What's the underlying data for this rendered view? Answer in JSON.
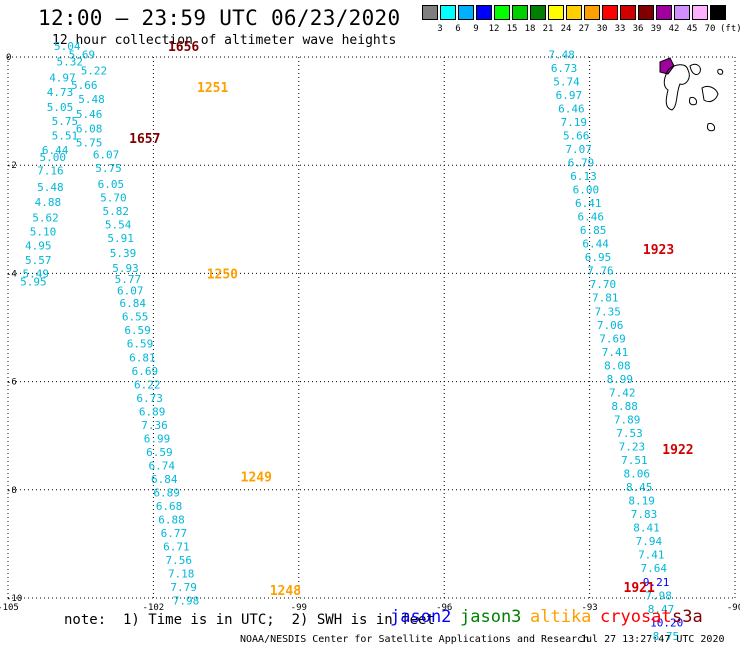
{
  "header": {
    "title": "12:00 – 23:59 UTC 06/23/2020",
    "subtitle": "12 hour collection of altimeter wave heights"
  },
  "colorbar": {
    "colors": [
      "#7f7f7f",
      "#00ffff",
      "#00b0ff",
      "#0000ff",
      "#00ff00",
      "#00d000",
      "#008000",
      "#ffff00",
      "#ffd000",
      "#ffa000",
      "#ff0000",
      "#d00000",
      "#800000",
      "#a000a0",
      "#d090ff",
      "#ffb0ff",
      "#000000"
    ],
    "labels": [
      "3",
      "6",
      "9",
      "12",
      "15",
      "18",
      "21",
      "24",
      "27",
      "30",
      "33",
      "36",
      "39",
      "42",
      "45",
      "70"
    ],
    "unit": "(ft)"
  },
  "axes": {
    "x_ticks": [
      "-105",
      "-102",
      "-99",
      "-96",
      "-93",
      "-90"
    ],
    "y_ticks": [
      "0",
      "-2",
      "-4",
      "-6",
      "-8",
      "-10"
    ],
    "lon_range": [
      -105,
      -90
    ],
    "lat_range": [
      -10,
      0
    ],
    "grid": "dotted"
  },
  "passes": [
    {
      "time": "1656",
      "color": "#800000",
      "lon": -101.7,
      "lat": 0.2
    },
    {
      "time": "1251",
      "color": "#ffa000",
      "lon": -101.1,
      "lat": -0.55
    },
    {
      "time": "1657",
      "color": "#800000",
      "lon": -102.5,
      "lat": -1.5
    },
    {
      "time": "1250",
      "color": "#ffa000",
      "lon": -100.9,
      "lat": -4.0
    },
    {
      "time": "1249",
      "color": "#ffa000",
      "lon": -100.2,
      "lat": -7.75
    },
    {
      "time": "1248",
      "color": "#ffa000",
      "lon": -99.6,
      "lat": -9.85
    },
    {
      "time": "1923",
      "color": "#d00000",
      "lon": -91.9,
      "lat": -3.55
    },
    {
      "time": "1922",
      "color": "#d00000",
      "lon": -91.5,
      "lat": -7.25
    },
    {
      "time": "1921",
      "color": "#d00000",
      "lon": -92.3,
      "lat": -9.8
    }
  ],
  "tracks": [
    {
      "name": "altika_west",
      "color": "#00b8d8",
      "points": [
        [
          -104.05,
          0.2,
          "5.04"
        ],
        [
          -103.75,
          0.05,
          "5.69"
        ],
        [
          -104.0,
          -0.08,
          "5.32"
        ],
        [
          -103.5,
          -0.25,
          "5.22"
        ],
        [
          -104.15,
          -0.38,
          "4.97"
        ],
        [
          -103.7,
          -0.52,
          "5.66"
        ],
        [
          -104.2,
          -0.65,
          "4.73"
        ],
        [
          -103.55,
          -0.78,
          "5.48"
        ],
        [
          -104.2,
          -0.92,
          "5.05"
        ],
        [
          -103.6,
          -1.05,
          "5.46"
        ],
        [
          -104.1,
          -1.18,
          "5.75"
        ],
        [
          -103.6,
          -1.32,
          "6.08"
        ],
        [
          -104.1,
          -1.45,
          "5.51"
        ],
        [
          -103.6,
          -1.58,
          "5.75"
        ],
        [
          -104.3,
          -1.72,
          "6.44"
        ],
        [
          -103.25,
          -1.8,
          "6.07"
        ],
        [
          -104.35,
          -1.85,
          "5.00"
        ],
        [
          -103.2,
          -2.05,
          "5.75"
        ],
        [
          -104.4,
          -2.1,
          "7.16"
        ],
        [
          -103.15,
          -2.35,
          "6.05"
        ],
        [
          -104.4,
          -2.4,
          "5.48"
        ],
        [
          -103.1,
          -2.6,
          "5.70"
        ],
        [
          -104.45,
          -2.68,
          "4.88"
        ],
        [
          -103.05,
          -2.85,
          "5.82"
        ],
        [
          -104.5,
          -2.97,
          "5.62"
        ],
        [
          -103.0,
          -3.1,
          "5.54"
        ],
        [
          -104.55,
          -3.23,
          "5.10"
        ],
        [
          -102.95,
          -3.35,
          "5.91"
        ],
        [
          -104.65,
          -3.48,
          "4.95"
        ],
        [
          -102.9,
          -3.62,
          "5.39"
        ],
        [
          -104.65,
          -3.75,
          "5.57"
        ],
        [
          -102.85,
          -3.9,
          "5.93"
        ],
        [
          -104.7,
          -4.0,
          "5.49"
        ],
        [
          -102.8,
          -4.1,
          "5.77"
        ],
        [
          -104.75,
          -4.15,
          "5.95"
        ],
        [
          -102.75,
          -4.32,
          "6.07"
        ],
        [
          -102.7,
          -4.55,
          "6.84"
        ],
        [
          -102.65,
          -4.8,
          "6.55"
        ],
        [
          -102.6,
          -5.05,
          "6.59"
        ],
        [
          -102.55,
          -5.3,
          "6.59"
        ],
        [
          -102.5,
          -5.55,
          "6.81"
        ],
        [
          -102.45,
          -5.8,
          "6.69"
        ],
        [
          -102.4,
          -6.05,
          "6.22"
        ],
        [
          -102.35,
          -6.3,
          "6.73"
        ],
        [
          -102.3,
          -6.55,
          "6.89"
        ],
        [
          -102.25,
          -6.8,
          "7.36"
        ],
        [
          -102.2,
          -7.05,
          "6.99"
        ],
        [
          -102.15,
          -7.3,
          "6.59"
        ],
        [
          -102.1,
          -7.55,
          "6.74"
        ],
        [
          -102.05,
          -7.8,
          "6.84"
        ],
        [
          -102.0,
          -8.05,
          "6.89"
        ],
        [
          -101.95,
          -8.3,
          "6.68"
        ],
        [
          -101.9,
          -8.55,
          "6.88"
        ],
        [
          -101.85,
          -8.8,
          "6.77"
        ],
        [
          -101.8,
          -9.05,
          "6.71"
        ],
        [
          -101.75,
          -9.3,
          "7.56"
        ],
        [
          -101.7,
          -9.55,
          "7.18"
        ],
        [
          -101.65,
          -9.8,
          "7.79"
        ],
        [
          -101.6,
          -10.05,
          "7.98"
        ]
      ]
    },
    {
      "name": "cryosat_east",
      "color": "#00b8d8",
      "points": [
        [
          -93.85,
          0.05,
          "7.48"
        ],
        [
          -93.8,
          -0.2,
          "6.73"
        ],
        [
          -93.75,
          -0.45,
          "5.74"
        ],
        [
          -93.7,
          -0.7,
          "6.97"
        ],
        [
          -93.65,
          -0.95,
          "6.46"
        ],
        [
          -93.6,
          -1.2,
          "7.19"
        ],
        [
          -93.55,
          -1.45,
          "5.66"
        ],
        [
          -93.5,
          -1.7,
          "7.07"
        ],
        [
          -93.45,
          -1.95,
          "6.79"
        ],
        [
          -93.4,
          -2.2,
          "6.13"
        ],
        [
          -93.35,
          -2.45,
          "6.00"
        ],
        [
          -93.3,
          -2.7,
          "6.41"
        ],
        [
          -93.25,
          -2.95,
          "6.46"
        ],
        [
          -93.2,
          -3.2,
          "6.85"
        ],
        [
          -93.15,
          -3.45,
          "6.44"
        ],
        [
          -93.1,
          -3.7,
          "6.95"
        ],
        [
          -93.05,
          -3.95,
          "7.76"
        ],
        [
          -93.0,
          -4.2,
          "7.70"
        ],
        [
          -92.95,
          -4.45,
          "7.81"
        ],
        [
          -92.9,
          -4.7,
          "7.35"
        ],
        [
          -92.85,
          -4.95,
          "7.06"
        ],
        [
          -92.8,
          -5.2,
          "7.69"
        ],
        [
          -92.75,
          -5.45,
          "7.41"
        ],
        [
          -92.7,
          -5.7,
          "8.08"
        ],
        [
          -92.65,
          -5.95,
          "8.99"
        ],
        [
          -92.6,
          -6.2,
          "7.42"
        ],
        [
          -92.55,
          -6.45,
          "8.88"
        ],
        [
          -92.5,
          -6.7,
          "7.89"
        ],
        [
          -92.45,
          -6.95,
          "7.53"
        ],
        [
          -92.4,
          -7.2,
          "7.23"
        ],
        [
          -92.35,
          -7.45,
          "7.51"
        ],
        [
          -92.3,
          -7.7,
          "8.06"
        ],
        [
          -92.25,
          -7.95,
          "8.45"
        ],
        [
          -92.2,
          -8.2,
          "8.19"
        ],
        [
          -92.15,
          -8.45,
          "7.83"
        ],
        [
          -92.1,
          -8.7,
          "8.41"
        ],
        [
          -92.05,
          -8.95,
          "7.94"
        ],
        [
          -92.0,
          -9.2,
          "7.41"
        ],
        [
          -91.95,
          -9.45,
          "7.64"
        ],
        [
          -91.9,
          -9.7,
          "9.21"
        ],
        [
          -91.85,
          -9.95,
          "7.98"
        ],
        [
          -91.8,
          -10.2,
          "8.47"
        ],
        [
          -91.75,
          -10.45,
          "10.20"
        ],
        [
          -91.7,
          -10.7,
          "8.75"
        ]
      ]
    }
  ],
  "legend": [
    {
      "name": "jason2",
      "color": "#0000ff"
    },
    {
      "name": "jason3",
      "color": "#008000"
    },
    {
      "name": "altika",
      "color": "#ffa000"
    },
    {
      "name": "cryosat",
      "color": "#ff0000"
    },
    {
      "name": "s3a",
      "color": "#800000"
    }
  ],
  "footer": {
    "note": "note:  1) Time is in UTC;  2) SWH is in feet",
    "credit": "NOAA/NESDIS Center for Satellite Applications and Research",
    "timestamp": "Jul 27 13:27:47 UTC 2020"
  }
}
